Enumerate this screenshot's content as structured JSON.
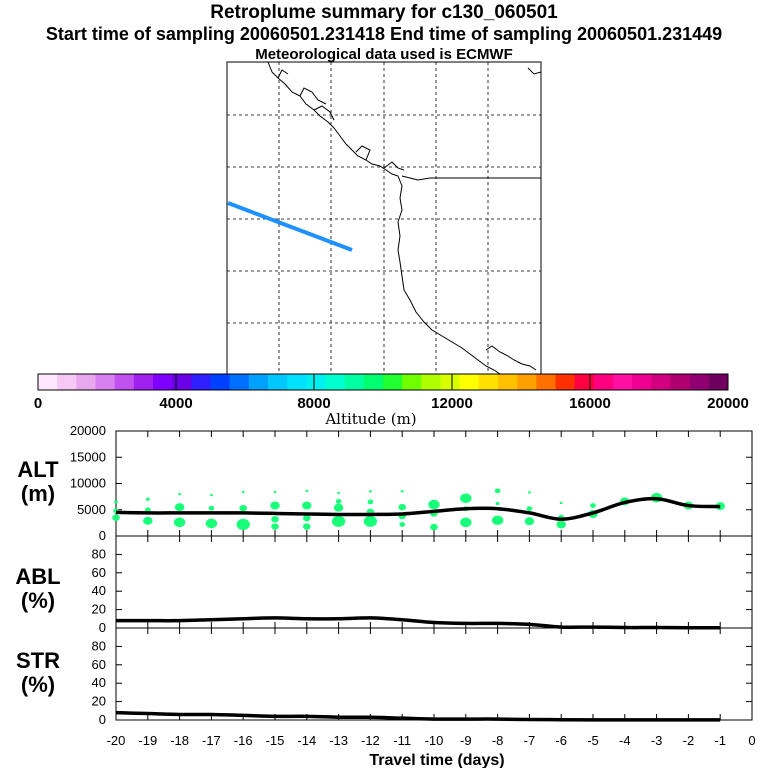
{
  "header": {
    "title": "Retroplume summary for c130_060501",
    "sampling_line": "Start time of sampling 20060501.231418     End time of sampling 20060501.231449",
    "meteo_line": "Meteorological data used is ECMWF"
  },
  "colors": {
    "trajectory": "#1e90ff",
    "marker": "#1aff7a",
    "line": "#000000",
    "colorbar": [
      "#ffe8ff",
      "#f5c8f5",
      "#e8a8f0",
      "#d880f0",
      "#c050f0",
      "#a020f0",
      "#8000ff",
      "#6a00e8",
      "#3020ff",
      "#0040ff",
      "#0070ff",
      "#00a0ff",
      "#00c8ff",
      "#00e0ff",
      "#00f0f0",
      "#00ffd0",
      "#00ffa0",
      "#00ff70",
      "#20ff30",
      "#70ff00",
      "#b0ff00",
      "#d8ff00",
      "#ffff00",
      "#ffe000",
      "#ffc000",
      "#ffa000",
      "#ff7000",
      "#ff3000",
      "#ff0040",
      "#ff0080",
      "#ff10a0",
      "#f00090",
      "#d00080",
      "#b00070",
      "#900070",
      "#700060"
    ]
  },
  "colorbar": {
    "title": "Altitude (m)",
    "ticks": [
      "0",
      "4000",
      "8000",
      "12000",
      "16000",
      "20000"
    ]
  },
  "chart_data": [
    {
      "type": "line",
      "panel": "ALT",
      "ylabel_line1": "ALT",
      "ylabel_line2": "(m)",
      "ylim": [
        0,
        20000
      ],
      "yticks": [
        "0",
        "5000",
        "10000",
        "15000",
        "20000"
      ],
      "x": [
        -20,
        -19,
        -18,
        -17,
        -16,
        -15,
        -14,
        -13,
        -12,
        -11,
        -10,
        -9,
        -8,
        -7,
        -6,
        -5,
        -4,
        -3,
        -2,
        -1
      ],
      "mean_altitude": [
        4500,
        4400,
        4400,
        4400,
        4400,
        4300,
        4200,
        4100,
        4100,
        4200,
        4700,
        5200,
        5200,
        4400,
        3200,
        4400,
        6400,
        7100,
        5800,
        5600
      ],
      "clusters": [
        {
          "x": -20.0,
          "y": 6500,
          "s": 2
        },
        {
          "x": -20.0,
          "y": 3500,
          "s": 4
        },
        {
          "x": -20.0,
          "y": 4800,
          "s": 3
        },
        {
          "x": -19.0,
          "y": 7000,
          "s": 2
        },
        {
          "x": -19.0,
          "y": 5000,
          "s": 3
        },
        {
          "x": -19.0,
          "y": 2900,
          "s": 5
        },
        {
          "x": -18.0,
          "y": 8000,
          "s": 1.5
        },
        {
          "x": -18.0,
          "y": 5500,
          "s": 5
        },
        {
          "x": -18.0,
          "y": 2600,
          "s": 6
        },
        {
          "x": -17.0,
          "y": 7800,
          "s": 1.5
        },
        {
          "x": -17.0,
          "y": 5300,
          "s": 3
        },
        {
          "x": -17.0,
          "y": 2400,
          "s": 6
        },
        {
          "x": -16.0,
          "y": 8400,
          "s": 1.5
        },
        {
          "x": -16.0,
          "y": 5300,
          "s": 4
        },
        {
          "x": -16.0,
          "y": 2200,
          "s": 7
        },
        {
          "x": -15.0,
          "y": 8400,
          "s": 1.5
        },
        {
          "x": -15.0,
          "y": 5800,
          "s": 5
        },
        {
          "x": -15.0,
          "y": 3200,
          "s": 4
        },
        {
          "x": -15.0,
          "y": 1800,
          "s": 4
        },
        {
          "x": -14.0,
          "y": 8600,
          "s": 1.5
        },
        {
          "x": -14.0,
          "y": 5800,
          "s": 5
        },
        {
          "x": -14.0,
          "y": 3400,
          "s": 4
        },
        {
          "x": -14.0,
          "y": 1800,
          "s": 4
        },
        {
          "x": -13.0,
          "y": 8200,
          "s": 1.5
        },
        {
          "x": -13.0,
          "y": 6600,
          "s": 3
        },
        {
          "x": -13.0,
          "y": 5400,
          "s": 5
        },
        {
          "x": -13.0,
          "y": 2800,
          "s": 7
        },
        {
          "x": -12.0,
          "y": 8500,
          "s": 1.5
        },
        {
          "x": -12.0,
          "y": 6500,
          "s": 3
        },
        {
          "x": -12.0,
          "y": 4600,
          "s": 4
        },
        {
          "x": -12.0,
          "y": 2800,
          "s": 7
        },
        {
          "x": -11.0,
          "y": 8500,
          "s": 1.5
        },
        {
          "x": -11.0,
          "y": 5500,
          "s": 4
        },
        {
          "x": -11.0,
          "y": 3800,
          "s": 4
        },
        {
          "x": -11.0,
          "y": 2200,
          "s": 3
        },
        {
          "x": -10.0,
          "y": 6000,
          "s": 6
        },
        {
          "x": -10.0,
          "y": 4300,
          "s": 4
        },
        {
          "x": -10.0,
          "y": 1700,
          "s": 4
        },
        {
          "x": -9.0,
          "y": 7200,
          "s": 6
        },
        {
          "x": -9.0,
          "y": 5200,
          "s": 3
        },
        {
          "x": -9.0,
          "y": 2600,
          "s": 6
        },
        {
          "x": -8.0,
          "y": 8600,
          "s": 3
        },
        {
          "x": -8.0,
          "y": 6200,
          "s": 2
        },
        {
          "x": -8.0,
          "y": 3000,
          "s": 6
        },
        {
          "x": -7.0,
          "y": 8300,
          "s": 1.5
        },
        {
          "x": -7.0,
          "y": 5200,
          "s": 3
        },
        {
          "x": -7.0,
          "y": 2800,
          "s": 5
        },
        {
          "x": -6.0,
          "y": 6300,
          "s": 1.5
        },
        {
          "x": -6.0,
          "y": 3600,
          "s": 3
        },
        {
          "x": -6.0,
          "y": 2200,
          "s": 5
        },
        {
          "x": -5.0,
          "y": 5800,
          "s": 3
        },
        {
          "x": -5.0,
          "y": 4200,
          "s": 5
        },
        {
          "x": -4.0,
          "y": 6600,
          "s": 5
        },
        {
          "x": -3.0,
          "y": 7300,
          "s": 6
        },
        {
          "x": -2.0,
          "y": 5800,
          "s": 5
        },
        {
          "x": -1.0,
          "y": 5700,
          "s": 5
        }
      ]
    },
    {
      "type": "line",
      "panel": "ABL",
      "ylabel_line1": "ABL",
      "ylabel_line2": "(%)",
      "ylim": [
        0,
        100
      ],
      "yticks": [
        "0",
        "20",
        "40",
        "60",
        "80"
      ],
      "x": [
        -20,
        -19,
        -18,
        -17,
        -16,
        -15,
        -14,
        -13,
        -12,
        -11,
        -10,
        -9,
        -8,
        -7,
        -6,
        -5,
        -4,
        -3,
        -2,
        -1
      ],
      "values": [
        8,
        8,
        8,
        9,
        10,
        11,
        10,
        10,
        11,
        9,
        6,
        5,
        5,
        4,
        1,
        1,
        0.5,
        0.5,
        0.3,
        0.3
      ]
    },
    {
      "type": "line",
      "panel": "STR",
      "ylabel_line1": "STR",
      "ylabel_line2": "(%)",
      "ylim": [
        0,
        100
      ],
      "yticks": [
        "0",
        "20",
        "40",
        "60",
        "80"
      ],
      "x": [
        -20,
        -19,
        -18,
        -17,
        -16,
        -15,
        -14,
        -13,
        -12,
        -11,
        -10,
        -9,
        -8,
        -7,
        -6,
        -5,
        -4,
        -3,
        -2,
        -1
      ],
      "values": [
        8,
        7,
        6,
        6,
        5,
        4,
        4,
        3,
        3,
        2,
        1,
        1,
        1,
        0.5,
        0.3,
        0.2,
        0.2,
        0.2,
        0.2,
        0.2
      ],
      "xlabel": "Travel time (days)",
      "xticks": [
        "-20",
        "-19",
        "-18",
        "-17",
        "-16",
        "-15",
        "-14",
        "-13",
        "-12",
        "-11",
        "-10",
        "-9",
        "-8",
        "-7",
        "-6",
        "-5",
        "-4",
        "-3",
        "-2",
        "-1",
        "0"
      ],
      "xlim": [
        -20,
        0
      ]
    }
  ]
}
